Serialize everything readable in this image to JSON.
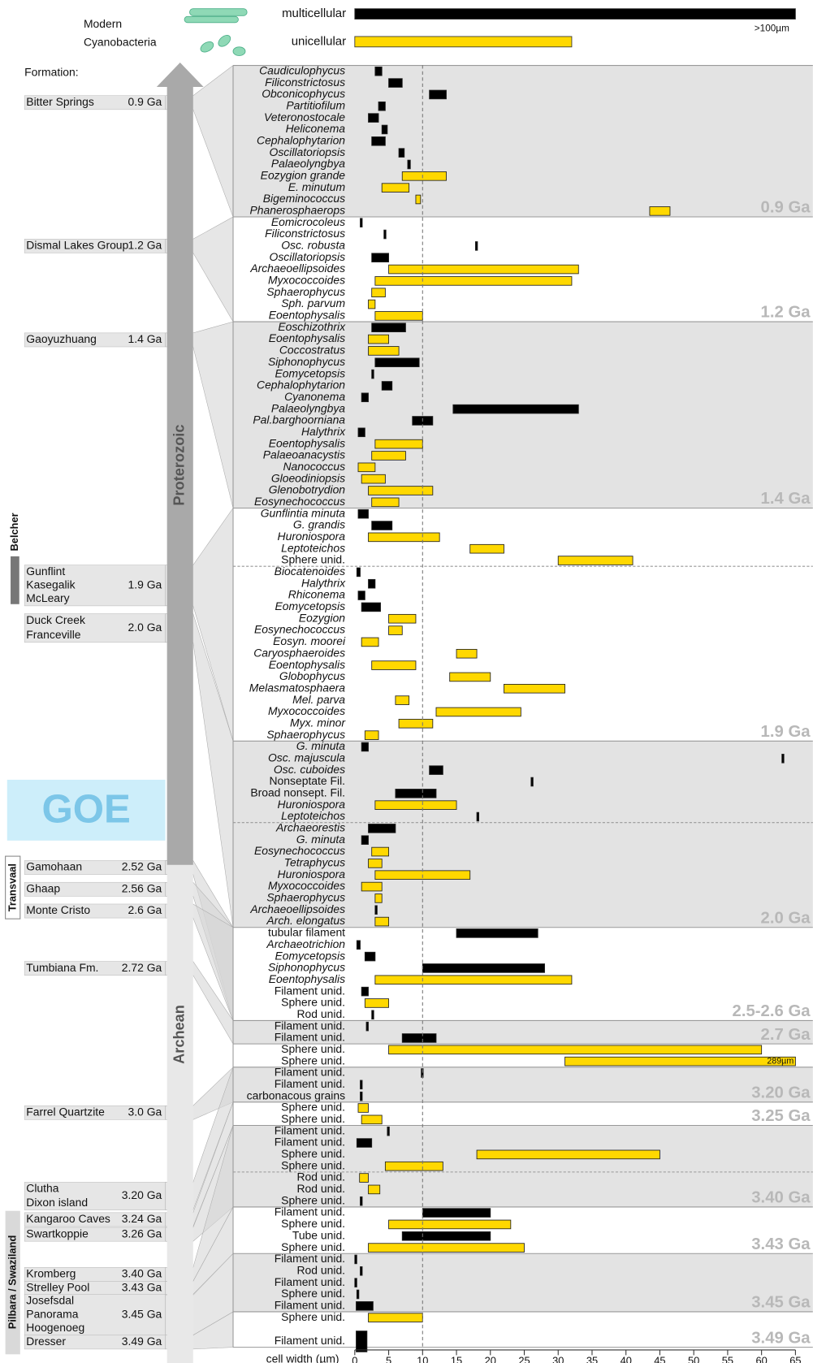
{
  "chart_data": {
    "type": "range-bar",
    "header": "Modern Cyanobacteria",
    "formation_heading": "Formation:",
    "eras": [
      "Proterozoic",
      "Archean"
    ],
    "event": "GOE",
    "basins": [
      "Belcher",
      "Transvaal",
      "Pilbara / Swaziland"
    ],
    "series": [
      {
        "name": "multicellular",
        "color": "#000000",
        "min": 0,
        "max": 65,
        "annotation": ">100µm"
      },
      {
        "name": "unicellular",
        "color": "#ffd800",
        "min": 0,
        "max": 32
      }
    ],
    "x_label": "cell width (µm)",
    "xlim": [
      0,
      65
    ],
    "xticks": [
      0,
      5,
      10,
      15,
      20,
      25,
      30,
      35,
      40,
      45,
      50,
      55,
      60,
      65
    ],
    "reference_line": 10,
    "formations": [
      {
        "names": [
          "Bitter Springs"
        ],
        "age": "0.9 Ga"
      },
      {
        "names": [
          "Dismal Lakes Group"
        ],
        "age": "1.2 Ga"
      },
      {
        "names": [
          "Gaoyuzhuang"
        ],
        "age": "1.4 Ga"
      },
      {
        "names": [
          "Gunflint",
          "Kasegalik",
          "McLeary"
        ],
        "age": "1.9 Ga"
      },
      {
        "names": [
          "Duck Creek",
          "Franceville"
        ],
        "age": "2.0 Ga"
      },
      {
        "names": [
          "Gamohaan"
        ],
        "age": "2.52 Ga"
      },
      {
        "names": [
          "Ghaap"
        ],
        "age": "2.56 Ga"
      },
      {
        "names": [
          "Monte Cristo"
        ],
        "age": "2.6 Ga"
      },
      {
        "names": [
          "Tumbiana Fm."
        ],
        "age": "2.72 Ga"
      },
      {
        "names": [
          "Farrel Quartzite"
        ],
        "age": "3.0 Ga"
      },
      {
        "names": [
          "Clutha",
          "Dixon island"
        ],
        "age": "3.20 Ga"
      },
      {
        "names": [
          "Kangaroo Caves"
        ],
        "age": "3.24 Ga"
      },
      {
        "names": [
          "Swartkoppie"
        ],
        "age": "3.26 Ga"
      },
      {
        "names": [
          "Kromberg"
        ],
        "age": "3.40 Ga"
      },
      {
        "names": [
          "Strelley Pool"
        ],
        "age": "3.43 Ga"
      },
      {
        "names": [
          "Josefsdal",
          "Panorama",
          "Hoogenoeg"
        ],
        "age": "3.45 Ga"
      },
      {
        "names": [
          "Dresser"
        ],
        "age": "3.49 Ga"
      }
    ],
    "groups": [
      {
        "label": "0.9 Ga",
        "shade": true,
        "rows": [
          {
            "name": "Caudiculophycus",
            "min": 3,
            "max": 4,
            "series": 0
          },
          {
            "name": "Filiconstrictosus",
            "min": 5,
            "max": 7,
            "series": 0
          },
          {
            "name": "Obconicophycus",
            "min": 11,
            "max": 13.5,
            "series": 0
          },
          {
            "name": "Partitiofilum",
            "min": 3.5,
            "max": 4.5,
            "series": 0
          },
          {
            "name": "Veteronostocale",
            "min": 2,
            "max": 3.5,
            "series": 0
          },
          {
            "name": "Heliconema",
            "min": 4,
            "max": 4.8,
            "series": 0
          },
          {
            "name": "Cephalophytarion",
            "min": 2.5,
            "max": 4.5,
            "series": 0
          },
          {
            "name": "Oscillatoriopsis",
            "min": 6.5,
            "max": 7.3,
            "series": 0
          },
          {
            "name": "Palaeolyngbya",
            "min": 7.8,
            "max": 8.2,
            "series": 0
          },
          {
            "name": "Eozygion grande",
            "min": 7,
            "max": 13.5,
            "series": 1
          },
          {
            "name": "E. minutum",
            "min": 4,
            "max": 8,
            "series": 1
          },
          {
            "name": "Bigeminococcus",
            "min": 9,
            "max": 9.7,
            "series": 1
          },
          {
            "name": "Phanerosphaerops",
            "min": 43.5,
            "max": 46.5,
            "series": 1
          }
        ]
      },
      {
        "label": "1.2 Ga",
        "shade": false,
        "rows": [
          {
            "name": "Eomicrocoleus",
            "min": 0.8,
            "max": 1.1,
            "series": 0
          },
          {
            "name": "Filiconstrictosus",
            "min": 4.3,
            "max": 4.6,
            "series": 0
          },
          {
            "name": "Osc. robusta",
            "min": 17.8,
            "max": 18.1,
            "series": 0
          },
          {
            "name": "Oscillatoriopsis",
            "min": 2.5,
            "max": 5,
            "series": 0
          },
          {
            "name": "Archaeoellipsoides",
            "min": 5,
            "max": 33,
            "series": 1
          },
          {
            "name": "Myxococcoides",
            "min": 3,
            "max": 32,
            "series": 1
          },
          {
            "name": "Sphaerophycus",
            "min": 2.5,
            "max": 4.5,
            "series": 1
          },
          {
            "name": "Sph. parvum",
            "min": 2,
            "max": 3,
            "series": 1
          },
          {
            "name": "Eoentophysalis",
            "min": 3,
            "max": 10,
            "series": 1
          }
        ]
      },
      {
        "label": "1.4 Ga",
        "shade": true,
        "rows": [
          {
            "name": "Eoschizothrix",
            "min": 2.5,
            "max": 7.5,
            "series": 0
          },
          {
            "name": "Eoentophysalis",
            "min": 2,
            "max": 5,
            "series": 1
          },
          {
            "name": "Coccostratus",
            "min": 2,
            "max": 6.5,
            "series": 1
          },
          {
            "name": "Siphonophycus",
            "min": 3,
            "max": 9.5,
            "series": 0
          },
          {
            "name": "Eomycetopsis",
            "min": 2.5,
            "max": 2.8,
            "series": 0
          },
          {
            "name": "Cephalophytarion",
            "min": 4,
            "max": 5.5,
            "series": 0
          },
          {
            "name": "Cyanonema",
            "min": 1,
            "max": 2,
            "series": 0
          },
          {
            "name": "Palaeolyngbya",
            "min": 14.5,
            "max": 33,
            "series": 0
          },
          {
            "name": "Pal.barghoorniana",
            "min": 8.5,
            "max": 11.5,
            "series": 0
          },
          {
            "name": "Halythrix",
            "min": 0.5,
            "max": 1.5,
            "series": 0
          },
          {
            "name": "Eoentophysalis",
            "min": 3,
            "max": 10,
            "series": 1
          },
          {
            "name": "Palaeoanacystis",
            "min": 2.5,
            "max": 7.5,
            "series": 1
          },
          {
            "name": "Nanococcus",
            "min": 0.5,
            "max": 3,
            "series": 1
          },
          {
            "name": "Gloeodiniopsis",
            "min": 1,
            "max": 4.5,
            "series": 1
          },
          {
            "name": "Glenobotrydion",
            "min": 2,
            "max": 11.5,
            "series": 1
          },
          {
            "name": "Eosynechococcus",
            "min": 2.5,
            "max": 6.5,
            "series": 1
          }
        ]
      },
      {
        "label": "1.9 Ga",
        "shade": false,
        "dashed_after": [
          4
        ],
        "rows": [
          {
            "name": "Gunflintia minuta",
            "min": 0.5,
            "max": 2,
            "series": 0
          },
          {
            "name": "G. grandis",
            "min": 2.5,
            "max": 5.5,
            "series": 0
          },
          {
            "name": "Huroniospora",
            "min": 2,
            "max": 12.5,
            "series": 1
          },
          {
            "name": "Leptoteichos",
            "min": 17,
            "max": 22,
            "series": 1
          },
          {
            "name": "Sphere unid.",
            "min": 30,
            "max": 41,
            "series": 1
          },
          {
            "name": "Biocatenoides",
            "min": 0.3,
            "max": 0.8,
            "series": 0
          },
          {
            "name": "Halythrix",
            "min": 2,
            "max": 3,
            "series": 0
          },
          {
            "name": "Rhiconema",
            "min": 0.5,
            "max": 1.5,
            "series": 0
          },
          {
            "name": "Eomycetopsis",
            "min": 1,
            "max": 3.8,
            "series": 0
          },
          {
            "name": "Eozygion",
            "min": 5,
            "max": 9,
            "series": 1
          },
          {
            "name": "Eosynechococcus",
            "min": 5,
            "max": 7,
            "series": 1
          },
          {
            "name": "Eosyn. moorei",
            "min": 1,
            "max": 3.5,
            "series": 1
          },
          {
            "name": "Caryosphaeroides",
            "min": 15,
            "max": 18,
            "series": 1
          },
          {
            "name": "Eoentophysalis",
            "min": 2.5,
            "max": 9,
            "series": 1
          },
          {
            "name": "Globophycus",
            "min": 14,
            "max": 20,
            "series": 1
          },
          {
            "name": "Melasmatosphaera",
            "min": 22,
            "max": 31,
            "series": 1
          },
          {
            "name": "Mel. parva",
            "min": 6,
            "max": 8,
            "series": 1
          },
          {
            "name": "Myxococcoides",
            "min": 12,
            "max": 24.5,
            "series": 1
          },
          {
            "name": "Myx. minor",
            "min": 6.5,
            "max": 11.5,
            "series": 1
          },
          {
            "name": "Sphaerophycus",
            "min": 1.5,
            "max": 3.5,
            "series": 1
          }
        ]
      },
      {
        "label": "2.0 Ga",
        "shade": true,
        "dashed_after": [
          6
        ],
        "rows": [
          {
            "name": "G. minuta",
            "min": 1,
            "max": 2,
            "series": 0
          },
          {
            "name": "Osc. majuscula",
            "min": 63,
            "max": 63.3,
            "series": 0
          },
          {
            "name": "Osc. cuboides",
            "min": 11,
            "max": 13,
            "series": 0
          },
          {
            "name": "Nonseptate Fil.",
            "min": 26,
            "max": 26.3,
            "series": 0
          },
          {
            "name": "Broad nonsept. Fil.",
            "min": 6,
            "max": 12,
            "series": 0
          },
          {
            "name": "Huroniospora",
            "min": 3,
            "max": 15,
            "series": 1
          },
          {
            "name": "Leptoteichos",
            "min": 18,
            "max": 18.3,
            "series": 0
          },
          {
            "name": "Archaeorestis",
            "min": 2,
            "max": 6,
            "series": 0
          },
          {
            "name": "G. minuta",
            "min": 1,
            "max": 2,
            "series": 0
          },
          {
            "name": "Eosynechococcus",
            "min": 2.5,
            "max": 5,
            "series": 1
          },
          {
            "name": "Tetraphycus",
            "min": 2,
            "max": 4,
            "series": 1
          },
          {
            "name": "Huroniospora",
            "min": 3,
            "max": 17,
            "series": 1
          },
          {
            "name": "Myxococcoides",
            "min": 1,
            "max": 4,
            "series": 1
          },
          {
            "name": "Sphaerophycus",
            "min": 3,
            "max": 4,
            "series": 1
          },
          {
            "name": "Archaeoellipsoides",
            "min": 3,
            "max": 3.3,
            "series": 0
          },
          {
            "name": "Arch. elongatus",
            "min": 3,
            "max": 5,
            "series": 1
          }
        ]
      },
      {
        "label": "2.5-2.6 Ga",
        "shade": false,
        "rows": [
          {
            "name": "tubular filament",
            "min": 15,
            "max": 27,
            "series": 0
          },
          {
            "name": "Archaeotrichion",
            "min": 0.3,
            "max": 0.8,
            "series": 0
          },
          {
            "name": "Eomycetopsis",
            "min": 1.5,
            "max": 3,
            "series": 0
          },
          {
            "name": "Siphonophycus",
            "min": 10,
            "max": 28,
            "series": 0
          },
          {
            "name": "Eoentophysalis",
            "min": 3,
            "max": 32,
            "series": 1
          },
          {
            "name": "Filament unid.",
            "min": 1,
            "max": 2,
            "series": 0
          },
          {
            "name": "Sphere unid.",
            "min": 1.5,
            "max": 5,
            "series": 1
          },
          {
            "name": "Rod unid.",
            "min": 2.5,
            "max": 2.8,
            "series": 0
          }
        ]
      },
      {
        "label": "2.7 Ga",
        "shade": true,
        "rows": [
          {
            "name": "Filament unid.",
            "min": 1.7,
            "max": 2,
            "series": 0
          },
          {
            "name": "Filament unid.",
            "min": 7,
            "max": 12,
            "series": 0
          }
        ]
      },
      {
        "shade": false,
        "rows": [
          {
            "name": "Sphere unid.",
            "min": 5,
            "max": 60,
            "series": 1
          },
          {
            "name": "Sphere unid.",
            "min": 31,
            "max": 65,
            "series": 1,
            "annotation": "289µm"
          }
        ]
      },
      {
        "label": "3.20 Ga",
        "shade": true,
        "rows": [
          {
            "name": "Filament unid.",
            "min": 9.8,
            "max": 10.1,
            "series": 0
          },
          {
            "name": "Filament unid.",
            "min": 0.8,
            "max": 1.1,
            "series": 0
          },
          {
            "name": "carbonacous grains",
            "min": 0.8,
            "max": 1.1,
            "series": 0
          }
        ]
      },
      {
        "label": "3.25 Ga",
        "shade": false,
        "rows": [
          {
            "name": "Sphere unid.",
            "min": 0.5,
            "max": 2,
            "series": 1
          },
          {
            "name": "Sphere unid.",
            "min": 1,
            "max": 4,
            "series": 1
          }
        ]
      },
      {
        "label": "3.40 Ga",
        "shade": true,
        "dashed_after": [
          3
        ],
        "rows": [
          {
            "name": "Filament unid.",
            "min": 4.8,
            "max": 5.1,
            "series": 0
          },
          {
            "name": "Filament unid.",
            "min": 0.3,
            "max": 2.5,
            "series": 0
          },
          {
            "name": "Sphere unid.",
            "min": 18,
            "max": 45,
            "series": 1
          },
          {
            "name": "Sphere unid.",
            "min": 4.5,
            "max": 13,
            "series": 1
          },
          {
            "name": "Rod unid.",
            "min": 0.7,
            "max": 2,
            "series": 1
          },
          {
            "name": "Rod unid.",
            "min": 2,
            "max": 3.7,
            "series": 1
          },
          {
            "name": "Sphere unid.",
            "min": 0.8,
            "max": 1.1,
            "series": 0
          }
        ]
      },
      {
        "label": "3.43 Ga",
        "shade": false,
        "rows": [
          {
            "name": "Filament unid.",
            "min": 10,
            "max": 20,
            "series": 0
          },
          {
            "name": "Sphere unid.",
            "min": 5,
            "max": 23,
            "series": 1
          },
          {
            "name": "Tube unid.",
            "min": 7,
            "max": 20,
            "series": 0
          },
          {
            "name": "Sphere unid.",
            "min": 2,
            "max": 25,
            "series": 1
          }
        ]
      },
      {
        "label": "3.45 Ga",
        "shade": true,
        "rows": [
          {
            "name": "Filament unid.",
            "min": 0,
            "max": 0.3,
            "series": 0
          },
          {
            "name": "Rod unid.",
            "min": 0.8,
            "max": 1.1,
            "series": 0
          },
          {
            "name": "Filament unid.",
            "min": 0,
            "max": 0.3,
            "series": 0
          },
          {
            "name": "Sphere unid.",
            "min": 0.3,
            "max": 0.6,
            "series": 0
          },
          {
            "name": "Filament unid.",
            "min": 0.2,
            "max": 2.7,
            "series": 0
          }
        ]
      },
      {
        "label": "3.49 Ga",
        "shade": false,
        "rows": [
          {
            "name": "Sphere unid.",
            "min": 2,
            "max": 10,
            "series": 1
          },
          {
            "name": "Filament unid.",
            "min": 0.2,
            "max": 1.8,
            "series": 0
          }
        ]
      }
    ]
  }
}
